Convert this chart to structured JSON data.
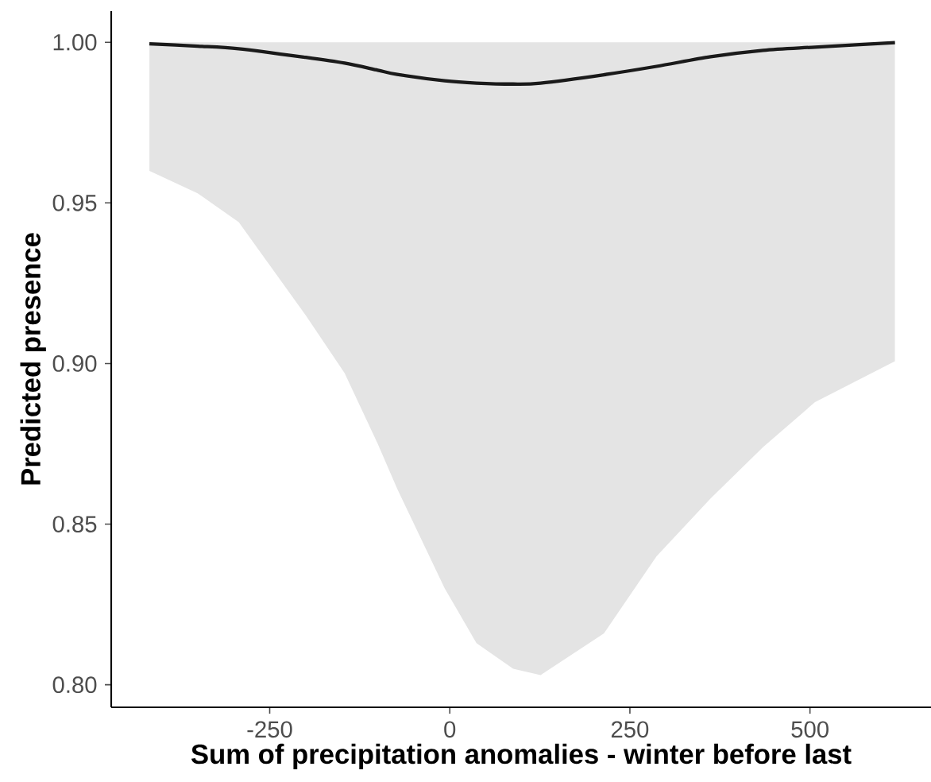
{
  "chart_data": {
    "type": "line",
    "xlabel": "Sum of precipitation anomalies - winter before last",
    "ylabel": "Predicted presence",
    "x": [
      -417,
      -350,
      -293,
      -200,
      -146,
      -100,
      -73,
      -7,
      37,
      88,
      126,
      214,
      287,
      362,
      435,
      507,
      618
    ],
    "series": [
      {
        "color": "#1a1a1a",
        "values": [
          0.9995,
          0.9988,
          0.998,
          0.9953,
          0.9935,
          0.9913,
          0.99,
          0.988,
          0.9873,
          0.987,
          0.9873,
          0.9899,
          0.9925,
          0.9955,
          0.9975,
          0.9985,
          0.9999
        ],
        "upper": [
          1.0,
          1.0,
          1.0,
          1.0,
          1.0,
          1.0,
          1.0,
          1.0,
          1.0,
          1.0,
          1.0,
          1.0,
          1.0,
          1.0,
          1.0,
          1.0,
          1.0
        ],
        "lower": [
          0.96,
          0.953,
          0.944,
          0.915,
          0.897,
          0.875,
          0.861,
          0.83,
          0.813,
          0.805,
          0.803,
          0.816,
          0.84,
          0.858,
          0.874,
          0.888,
          0.9007
        ]
      }
    ],
    "xlim": [
      -470,
      668
    ],
    "ylim": [
      0.793,
      1.0097
    ],
    "xticks": [
      -250,
      0,
      250,
      500
    ],
    "yticks": [
      {
        "value": 0.8,
        "label": "0.80"
      },
      {
        "value": 0.85,
        "label": "0.85"
      },
      {
        "value": 0.9,
        "label": "0.90"
      },
      {
        "value": 0.95,
        "label": "0.95"
      },
      {
        "value": 1.0,
        "label": "1.00"
      }
    ],
    "grid": false,
    "line_style": "solid"
  }
}
